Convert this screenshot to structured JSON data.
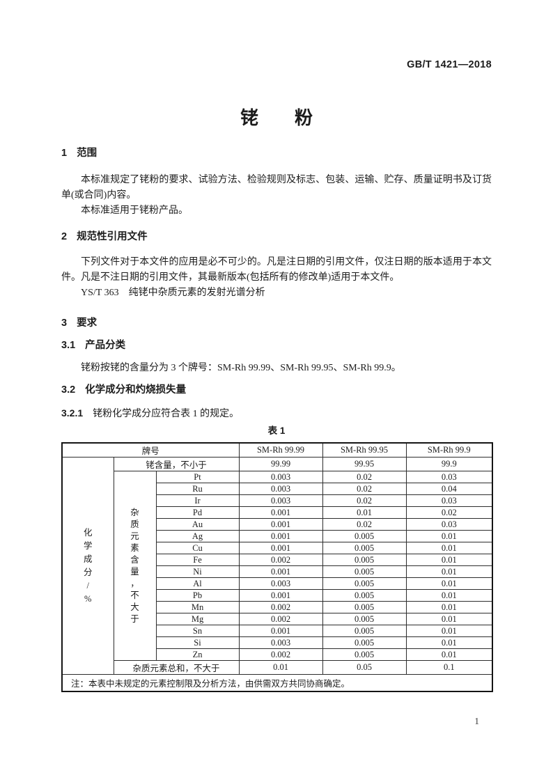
{
  "document": {
    "standard_code": "GB/T 1421—2018",
    "title": "铑　　粉",
    "page_number": "1"
  },
  "sections": {
    "s1": {
      "number": "1",
      "heading": "范围",
      "para1": "本标准规定了铑粉的要求、试验方法、检验规则及标志、包装、运输、贮存、质量证明书及订货单(或合同)内容。",
      "para2": "本标准适用于铑粉产品。"
    },
    "s2": {
      "number": "2",
      "heading": "规范性引用文件",
      "para1": "下列文件对于本文件的应用是必不可少的。凡是注日期的引用文件，仅注日期的版本适用于本文件。凡是不注日期的引用文件，其最新版本(包括所有的修改单)适用于本文件。",
      "reference": "YS/T 363　纯铑中杂质元素的发射光谱分析"
    },
    "s3": {
      "number": "3",
      "heading": "要求",
      "s31": {
        "number": "3.1",
        "heading": "产品分类",
        "para": "铑粉按铑的含量分为 3 个牌号：SM-Rh 99.99、SM-Rh 99.95、SM-Rh 99.9。"
      },
      "s32": {
        "number": "3.2",
        "heading": "化学成分和灼烧损失量"
      },
      "s321": {
        "number": "3.2.1",
        "text": "铑粉化学成分应符合表 1 的规定。"
      }
    }
  },
  "table1": {
    "caption": "表 1",
    "col_header_label": "牌号",
    "grades": [
      "SM-Rh 99.99",
      "SM-Rh 99.95",
      "SM-Rh 99.9"
    ],
    "rh_content_label": "铑含量，不小于",
    "rh_content_values": [
      "99.99",
      "99.95",
      "99.9"
    ],
    "group_label_vertical": "化学成分/%",
    "impurity_label_vertical": "杂质元素含量，不大于",
    "impurities": [
      {
        "element": "Pt",
        "values": [
          "0.003",
          "0.02",
          "0.03"
        ]
      },
      {
        "element": "Ru",
        "values": [
          "0.003",
          "0.02",
          "0.04"
        ]
      },
      {
        "element": "Ir",
        "values": [
          "0.003",
          "0.02",
          "0.03"
        ]
      },
      {
        "element": "Pd",
        "values": [
          "0.001",
          "0.01",
          "0.02"
        ]
      },
      {
        "element": "Au",
        "values": [
          "0.001",
          "0.02",
          "0.03"
        ]
      },
      {
        "element": "Ag",
        "values": [
          "0.001",
          "0.005",
          "0.01"
        ]
      },
      {
        "element": "Cu",
        "values": [
          "0.001",
          "0.005",
          "0.01"
        ]
      },
      {
        "element": "Fe",
        "values": [
          "0.002",
          "0.005",
          "0.01"
        ]
      },
      {
        "element": "Ni",
        "values": [
          "0.001",
          "0.005",
          "0.01"
        ]
      },
      {
        "element": "Al",
        "values": [
          "0.003",
          "0.005",
          "0.01"
        ]
      },
      {
        "element": "Pb",
        "values": [
          "0.001",
          "0.005",
          "0.01"
        ]
      },
      {
        "element": "Mn",
        "values": [
          "0.002",
          "0.005",
          "0.01"
        ]
      },
      {
        "element": "Mg",
        "values": [
          "0.002",
          "0.005",
          "0.01"
        ]
      },
      {
        "element": "Sn",
        "values": [
          "0.001",
          "0.005",
          "0.01"
        ]
      },
      {
        "element": "Si",
        "values": [
          "0.003",
          "0.005",
          "0.01"
        ]
      },
      {
        "element": "Zn",
        "values": [
          "0.002",
          "0.005",
          "0.01"
        ]
      }
    ],
    "total_label": "杂质元素总和，不大于",
    "total_values": [
      "0.01",
      "0.05",
      "0.1"
    ],
    "note": "注：本表中未规定的元素控制限及分析方法，由供需双方共同协商确定。"
  }
}
